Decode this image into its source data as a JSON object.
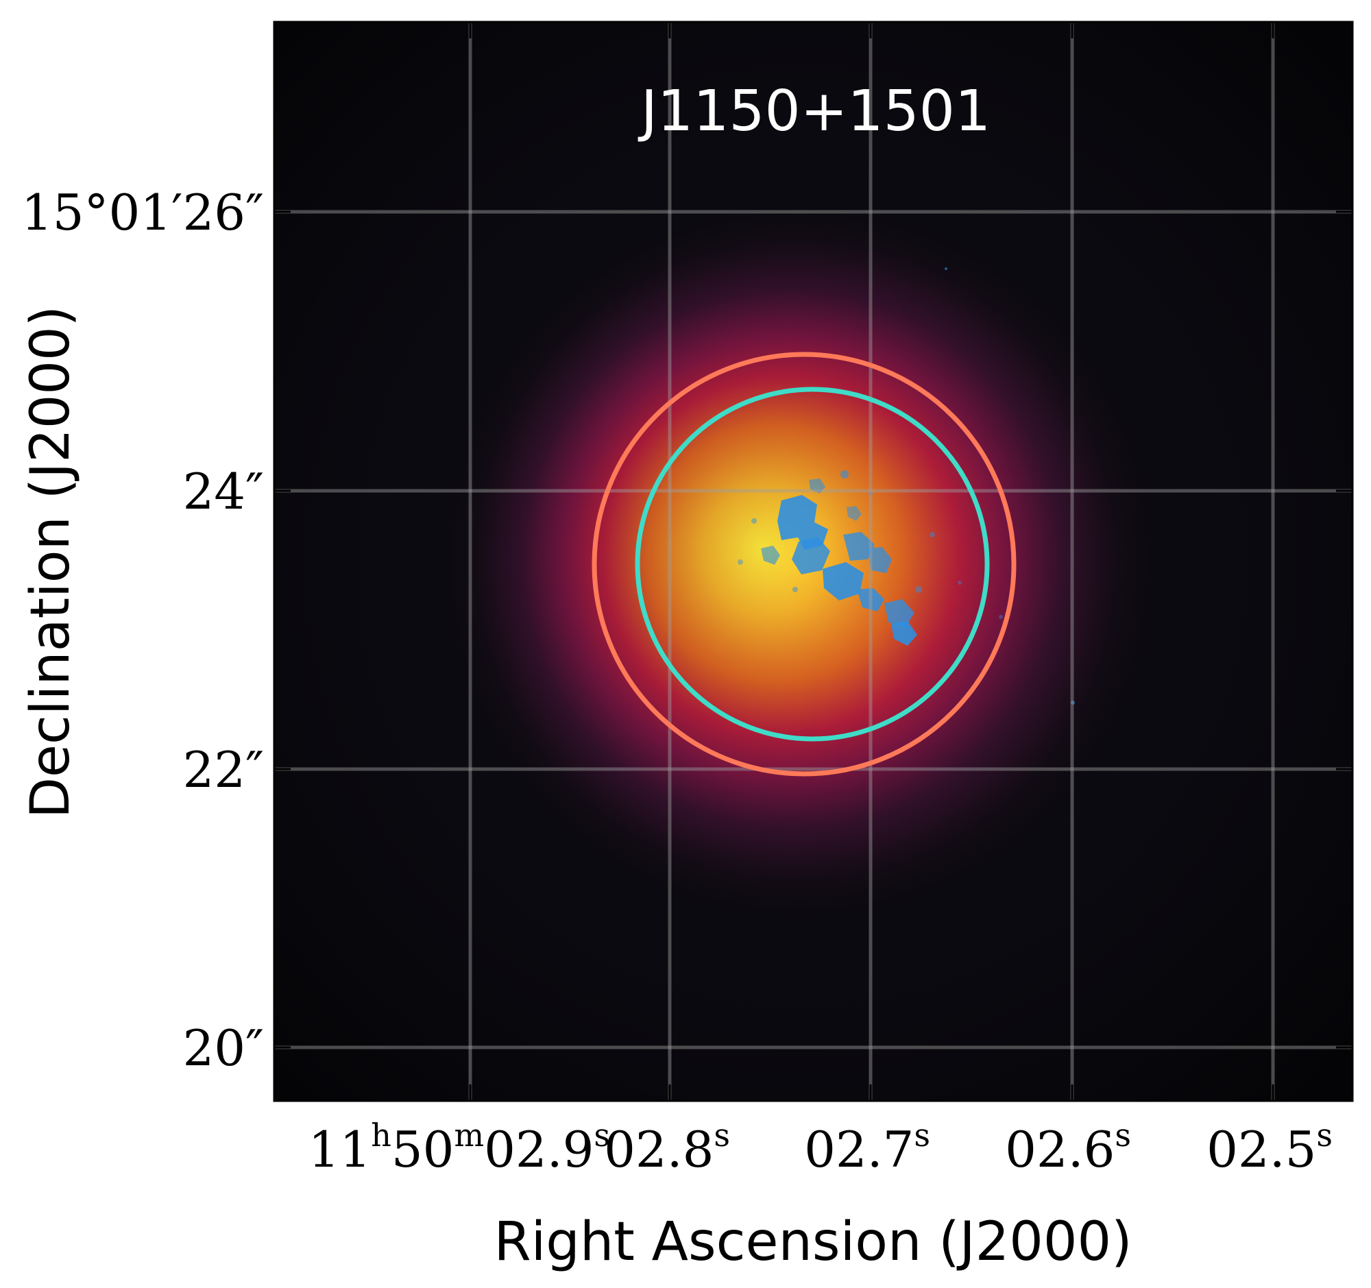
{
  "title": "J1150+1501",
  "xlabel": "Right Ascension (J2000)",
  "ylabel": "Declination (J2000)",
  "x_ticks": [
    {
      "text": "11h50m02.9s",
      "parts": [
        {
          "t": "11",
          "sup": false
        },
        {
          "t": "h",
          "sup": true
        },
        {
          "t": "50",
          "sup": false
        },
        {
          "t": "m",
          "sup": true
        },
        {
          "t": "02.9",
          "sup": false
        },
        {
          "t": "s",
          "sup": true
        }
      ]
    },
    {
      "text": "02.8s",
      "parts": [
        {
          "t": "02.8",
          "sup": false
        },
        {
          "t": "s",
          "sup": true
        }
      ]
    },
    {
      "text": "02.7s",
      "parts": [
        {
          "t": "02.7",
          "sup": false
        },
        {
          "t": "s",
          "sup": true
        }
      ]
    },
    {
      "text": "02.6s",
      "parts": [
        {
          "t": "02.6",
          "sup": false
        },
        {
          "t": "s",
          "sup": true
        }
      ]
    },
    {
      "text": "02.5s",
      "parts": [
        {
          "t": "02.5",
          "sup": false
        },
        {
          "t": "s",
          "sup": true
        }
      ]
    }
  ],
  "y_ticks": [
    "15°01′26″",
    "24″",
    "22″",
    "20″"
  ],
  "colors": {
    "background": "#000000",
    "outer_ring": "#ff7a59",
    "inner_ring": "#3fdcc8",
    "grid": "#8f8f8f",
    "emission_blue": "#2f8fe0"
  }
}
